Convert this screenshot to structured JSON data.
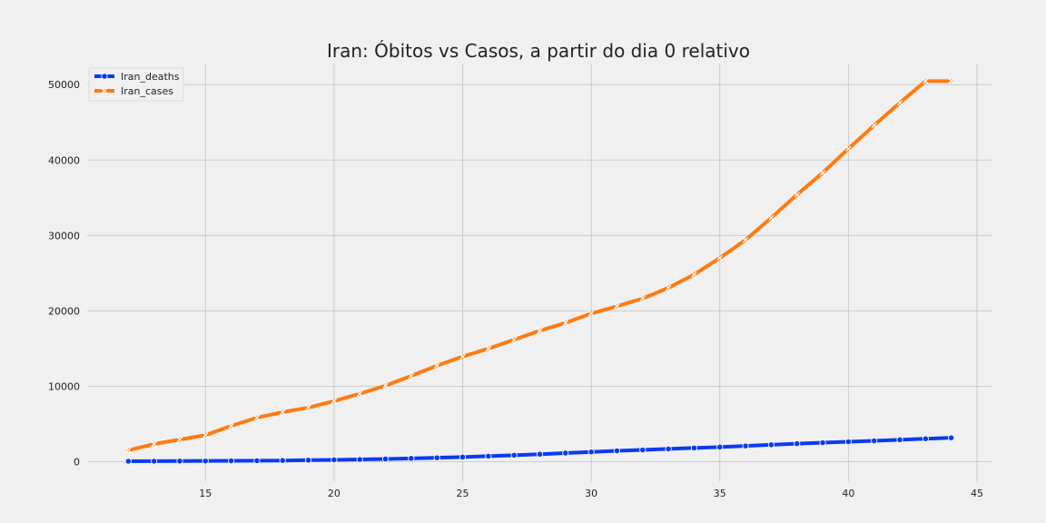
{
  "chart_data": {
    "type": "line",
    "title": "Iran: Óbitos vs Casos, a partir do dia 0 relativo",
    "xlabel": "",
    "ylabel": "",
    "xlim": [
      10.4,
      45.6
    ],
    "ylim": [
      -2600,
      52800
    ],
    "xticks": [
      15,
      20,
      25,
      30,
      35,
      40,
      45
    ],
    "yticks": [
      0,
      10000,
      20000,
      30000,
      40000,
      50000
    ],
    "grid": true,
    "legend_position": "top-left",
    "x": [
      12,
      13,
      14,
      15,
      16,
      17,
      18,
      19,
      20,
      21,
      22,
      23,
      24,
      25,
      26,
      27,
      28,
      29,
      30,
      31,
      32,
      33,
      34,
      35,
      36,
      37,
      38,
      39,
      40,
      41,
      42,
      43,
      44
    ],
    "series": [
      {
        "name": "Iran_deaths",
        "color": "#0a3bf0",
        "marker": "circle",
        "values": [
          54,
          66,
          77,
          92,
          107,
          124,
          145,
          194,
          237,
          291,
          354,
          429,
          514,
          611,
          724,
          853,
          988,
          1135,
          1284,
          1433,
          1556,
          1685,
          1812,
          1934,
          2077,
          2234,
          2378,
          2517,
          2640,
          2757,
          2898,
          3036,
          3160
        ]
      },
      {
        "name": "Iran_cases",
        "color": "#ff7b0f",
        "marker": "x",
        "values": [
          1501,
          2336,
          2922,
          3513,
          4747,
          5823,
          6566,
          7161,
          8042,
          9000,
          10075,
          11364,
          12729,
          13938,
          14991,
          16169,
          17361,
          18407,
          19644,
          20610,
          21638,
          23049,
          24811,
          27017,
          29406,
          32332,
          35408,
          38309,
          41495,
          44605,
          47593,
          50468,
          50468
        ]
      }
    ]
  }
}
